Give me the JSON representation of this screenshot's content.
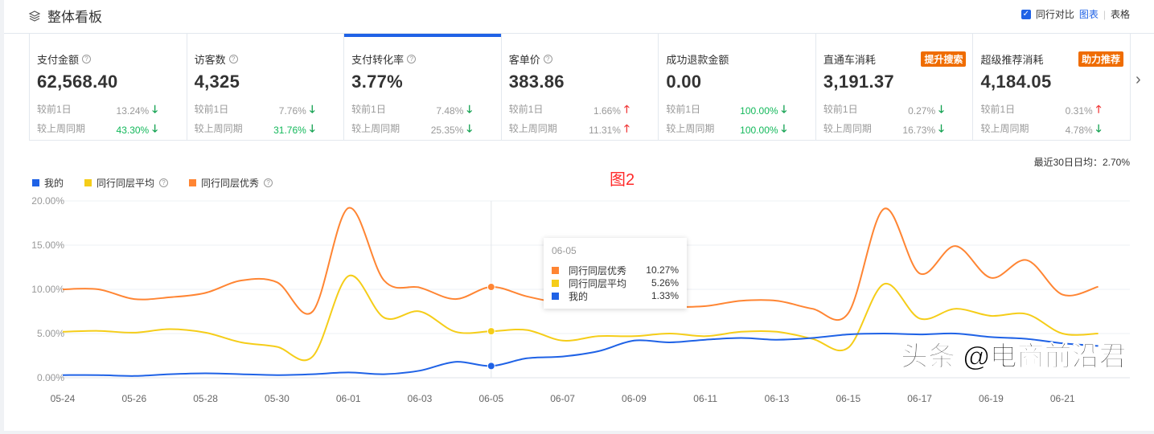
{
  "header": {
    "title": "整体看板",
    "compare_label": "同行对比",
    "compare_checked": true,
    "view_chart": "图表",
    "view_table": "表格"
  },
  "cards": [
    {
      "label": "支付金额",
      "value": "62,568.40",
      "help": true,
      "d1_label": "较前1日",
      "d1": "13.24%",
      "d1_dir": "down",
      "w_label": "较上周同期",
      "w": "43.30%",
      "w_dir": "down",
      "w_green": true
    },
    {
      "label": "访客数",
      "value": "4,325",
      "help": true,
      "d1_label": "较前1日",
      "d1": "7.76%",
      "d1_dir": "down",
      "w_label": "较上周同期",
      "w": "31.76%",
      "w_dir": "down",
      "w_green": true
    },
    {
      "label": "支付转化率",
      "value": "3.77%",
      "help": true,
      "active": true,
      "d1_label": "较前1日",
      "d1": "7.48%",
      "d1_dir": "down",
      "w_label": "较上周同期",
      "w": "25.35%",
      "w_dir": "down"
    },
    {
      "label": "客单价",
      "value": "383.86",
      "help": true,
      "d1_label": "较前1日",
      "d1": "1.66%",
      "d1_dir": "up",
      "w_label": "较上周同期",
      "w": "11.31%",
      "w_dir": "up"
    },
    {
      "label": "成功退款金额",
      "value": "0.00",
      "d1_label": "较前1日",
      "d1": "100.00%",
      "d1_dir": "down",
      "d1_green": true,
      "w_label": "较上周同期",
      "w": "100.00%",
      "w_dir": "down",
      "w_green": true
    },
    {
      "label": "直通车消耗",
      "value": "3,191.37",
      "badge": "提升搜索",
      "d1_label": "较前1日",
      "d1": "0.27%",
      "d1_dir": "down",
      "w_label": "较上周同期",
      "w": "16.73%",
      "w_dir": "down"
    },
    {
      "label": "超级推荐消耗",
      "value": "4,184.05",
      "badge": "助力推荐",
      "d1_label": "较前1日",
      "d1": "0.31%",
      "d1_dir": "up",
      "w_label": "较上周同期",
      "w": "4.78%",
      "w_dir": "down"
    }
  ],
  "avg_text": "最近30日日均：2.70%",
  "annotation": "图2",
  "watermark": "头条 @电商前沿君",
  "tooltip": {
    "date": "06-05",
    "rows": [
      {
        "name": "同行同层优秀",
        "value": "10.27%",
        "color": "#ff8533"
      },
      {
        "name": "同行同层平均",
        "value": "5.26%",
        "color": "#f5cd19"
      },
      {
        "name": "我的",
        "value": "1.33%",
        "color": "#1f62e6"
      }
    ]
  },
  "chart_data": {
    "type": "line",
    "x": [
      "05-24",
      "05-25",
      "05-26",
      "05-27",
      "05-28",
      "05-29",
      "05-30",
      "05-31",
      "06-01",
      "06-02",
      "06-03",
      "06-04",
      "06-05",
      "06-06",
      "06-07",
      "06-08",
      "06-09",
      "06-10",
      "06-11",
      "06-12",
      "06-13",
      "06-14",
      "06-15",
      "06-16",
      "06-17",
      "06-18",
      "06-19",
      "06-20",
      "06-21",
      "06-22"
    ],
    "x_ticks": [
      "05-24",
      "05-26",
      "05-28",
      "05-30",
      "06-01",
      "06-03",
      "06-05",
      "06-07",
      "06-09",
      "06-11",
      "06-13",
      "06-15",
      "06-17",
      "06-19",
      "06-21"
    ],
    "y_ticks": [
      "0.00%",
      "5.00%",
      "10.00%",
      "15.00%",
      "20.00%"
    ],
    "ylim": [
      0,
      20
    ],
    "grid": true,
    "legend": "top-left",
    "highlight": "06-05",
    "series": [
      {
        "name": "我的",
        "color": "#1f62e6",
        "values": [
          0.3,
          0.3,
          0.2,
          0.4,
          0.5,
          0.4,
          0.3,
          0.4,
          0.6,
          0.4,
          0.8,
          1.8,
          1.33,
          2.2,
          2.4,
          3.0,
          4.2,
          4.0,
          4.3,
          4.5,
          4.3,
          4.5,
          4.9,
          5.0,
          4.9,
          5.0,
          4.6,
          4.4,
          3.9,
          3.6
        ]
      },
      {
        "name": "同行同层平均",
        "color": "#f5cd19",
        "help": true,
        "values": [
          5.2,
          5.3,
          5.1,
          5.5,
          5.1,
          4.0,
          3.5,
          2.4,
          11.5,
          6.8,
          7.5,
          5.2,
          5.26,
          5.4,
          4.2,
          4.7,
          4.7,
          5.0,
          4.7,
          5.2,
          5.2,
          4.4,
          3.4,
          10.6,
          6.7,
          7.8,
          7.0,
          7.2,
          5.0,
          5.0
        ]
      },
      {
        "name": "同行同层优秀",
        "color": "#ff8533",
        "help": true,
        "values": [
          10.0,
          10.0,
          8.9,
          9.1,
          9.6,
          11.0,
          10.8,
          7.5,
          19.2,
          11.0,
          10.2,
          8.9,
          10.27,
          9.2,
          8.4,
          8.1,
          8.1,
          8.0,
          8.1,
          8.7,
          8.7,
          7.8,
          7.3,
          19.1,
          11.8,
          14.9,
          11.3,
          13.3,
          9.4,
          10.3
        ]
      }
    ]
  }
}
